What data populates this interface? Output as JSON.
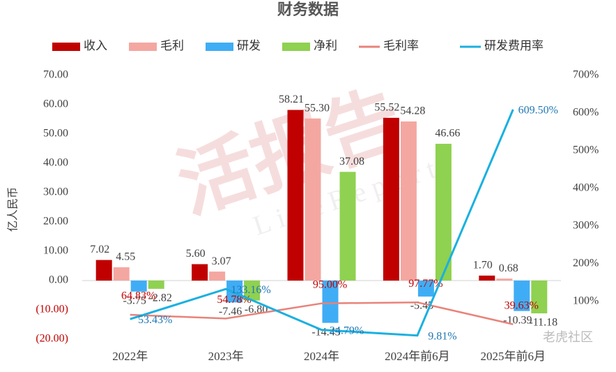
{
  "chart_data": {
    "type": "bar",
    "title": "财务数据",
    "y_label": "亿人民币",
    "categories": [
      "2022年",
      "2023年",
      "2024年",
      "2024年前6月",
      "2025年前6月"
    ],
    "series": [
      {
        "name": "收入",
        "type": "bar",
        "color": "#c00000",
        "values": [
          7.02,
          5.6,
          58.21,
          55.52,
          1.7
        ],
        "value_labels": [
          "7.02",
          "5.60",
          "58.21",
          "55.52",
          "1.70"
        ]
      },
      {
        "name": "毛利",
        "type": "bar",
        "color": "#f4a7a1",
        "values": [
          4.55,
          3.07,
          55.3,
          54.28,
          0.68
        ],
        "value_labels": [
          "4.55",
          "3.07",
          "55.30",
          "54.28",
          "0.68"
        ]
      },
      {
        "name": "研发",
        "type": "bar",
        "color": "#3fadf5",
        "values": [
          -3.75,
          -7.46,
          -14.43,
          -5.45,
          -10.39
        ],
        "value_labels": [
          "-3.75",
          "-7.46",
          "-14.43",
          "-5.45",
          "-10.39"
        ]
      },
      {
        "name": "净利",
        "type": "bar",
        "color": "#8fd150",
        "values": [
          -2.82,
          -6.8,
          37.08,
          46.66,
          -11.18
        ],
        "value_labels": [
          "-2.82",
          "-6.80",
          "37.08",
          "46.66",
          "-11.18"
        ]
      },
      {
        "name": "毛利率",
        "type": "line",
        "axis": "y2",
        "color": "#e8837a",
        "label_color": "#c00000",
        "values": [
          64.83,
          54.78,
          95.0,
          97.77,
          39.63
        ],
        "value_labels": [
          "64.83%",
          "54.78%",
          "95.00%",
          "97.77%",
          "39.63%"
        ]
      },
      {
        "name": "研发费用率",
        "type": "line",
        "axis": "y2",
        "color": "#1ab0e0",
        "label_color": "#1f77b4",
        "values": [
          53.43,
          133.16,
          24.79,
          9.81,
          609.5
        ],
        "value_labels": [
          "53.43%",
          "133.16%",
          "24.79%",
          "9.81%",
          "609.50%"
        ]
      }
    ],
    "ylim": [
      -20,
      70
    ],
    "yticks": [
      {
        "value": -20,
        "label": "(20.00)"
      },
      {
        "value": -10,
        "label": "(10.00)"
      },
      {
        "value": 0,
        "label": "0.00"
      },
      {
        "value": 10,
        "label": "10.00"
      },
      {
        "value": 20,
        "label": "20.00"
      },
      {
        "value": 30,
        "label": "30.00"
      },
      {
        "value": 40,
        "label": "40.00"
      },
      {
        "value": 50,
        "label": "50.00"
      },
      {
        "value": 60,
        "label": "60.00"
      },
      {
        "value": 70,
        "label": "70.00"
      }
    ],
    "y2lim": [
      0,
      700
    ],
    "y2ticks": [
      {
        "value": 100,
        "label": "100%"
      },
      {
        "value": 200,
        "label": "200%"
      },
      {
        "value": 300,
        "label": "300%"
      },
      {
        "value": 400,
        "label": "400%"
      },
      {
        "value": 500,
        "label": "500%"
      },
      {
        "value": 600,
        "label": "600%"
      },
      {
        "value": 700,
        "label": "700%"
      }
    ],
    "grid": false,
    "legend": "top",
    "watermarks": [
      "活报告",
      "LiveReport",
      "老虎社区"
    ]
  }
}
